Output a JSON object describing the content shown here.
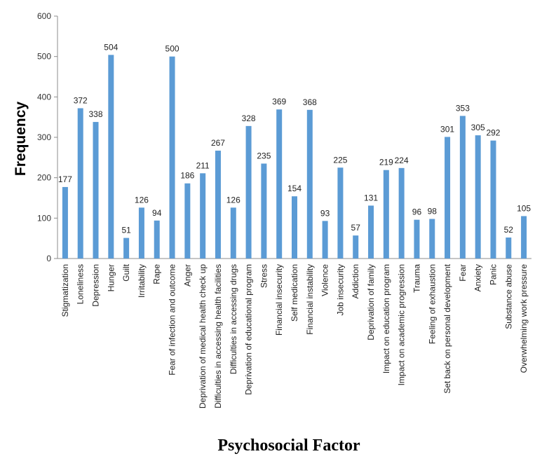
{
  "chart_data": {
    "type": "bar",
    "title": "",
    "xlabel": "Psychosocial Factor",
    "ylabel": "Frequency",
    "ylim": [
      0,
      600
    ],
    "yticks": [
      0,
      100,
      200,
      300,
      400,
      500,
      600
    ],
    "grid": false,
    "legend": "none",
    "bar_color": "#5b9bd5",
    "categories": [
      "Stigmatization",
      "Loneliness",
      "Depression",
      "Hunger",
      "Guilt",
      "Irritability",
      "Rape",
      "Fear of infection and outcome",
      "Anger",
      "Deprivation of medical health check up",
      "Difficulties in accessing health facilities",
      "Difficulties in accessing drugs",
      "Deprivation of educational program",
      "Stress",
      "Financial insecurity",
      "Self medication",
      "Financial instability",
      "Violence",
      "Job insecurity",
      "Addiction",
      "Deprivation of family",
      "Impact on education program",
      "Impact on academic progression",
      "Trauma",
      "Feeling of exhaustion",
      "Set back on personal development",
      "Fear",
      "Anxiety",
      "Panic",
      "Substance abuse",
      "Overwhelming work pressure"
    ],
    "values": [
      177,
      372,
      338,
      504,
      51,
      126,
      94,
      500,
      186,
      211,
      267,
      126,
      328,
      235,
      369,
      154,
      368,
      93,
      225,
      57,
      131,
      219,
      224,
      96,
      98,
      301,
      353,
      305,
      292,
      52,
      105
    ]
  }
}
